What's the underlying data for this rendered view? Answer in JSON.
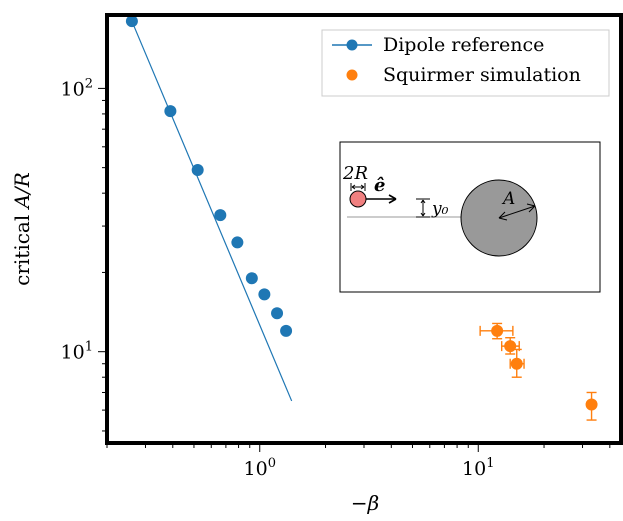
{
  "chart_data": {
    "type": "scatter",
    "xscale": "log",
    "yscale": "log",
    "xlim": [
      0.2,
      45
    ],
    "ylim": [
      4.5,
      190
    ],
    "xlabel_prefix": "−",
    "xlabel_symbol": "β",
    "ylabel_text": "critical ",
    "ylabel_math": "A/R",
    "xticks": [
      {
        "value": 1,
        "base": "10",
        "exp": "0"
      },
      {
        "value": 10,
        "base": "10",
        "exp": "1"
      }
    ],
    "yticks": [
      {
        "value": 10,
        "base": "10",
        "exp": "1"
      },
      {
        "value": 100,
        "base": "10",
        "exp": "2"
      }
    ],
    "legend": {
      "placement": "top-right",
      "entries": [
        "Dipole reference",
        "Squirmer simulation"
      ]
    },
    "series": [
      {
        "name": "Dipole reference",
        "color": "#1f77b4",
        "kind": "points+line",
        "points": [
          {
            "x": 0.26,
            "y": 180
          },
          {
            "x": 0.39,
            "y": 82
          },
          {
            "x": 0.52,
            "y": 49
          },
          {
            "x": 0.66,
            "y": 33
          },
          {
            "x": 0.79,
            "y": 26
          },
          {
            "x": 0.92,
            "y": 19
          },
          {
            "x": 1.05,
            "y": 16.5
          },
          {
            "x": 1.2,
            "y": 14
          },
          {
            "x": 1.32,
            "y": 12
          }
        ],
        "line": [
          {
            "x": 0.26,
            "y": 180
          },
          {
            "x": 1.4,
            "y": 6.5
          }
        ]
      },
      {
        "name": "Squirmer simulation",
        "color": "#ff7f0e",
        "kind": "points+errorbars",
        "points": [
          {
            "x": 12.2,
            "y": 12.0,
            "xerr": [
              10.2,
              14.4
            ],
            "yerr": [
              11.2,
              12.8
            ]
          },
          {
            "x": 14.0,
            "y": 10.5,
            "xerr": [
              12.8,
              15.4
            ],
            "yerr": [
              9.8,
              11.3
            ]
          },
          {
            "x": 15.0,
            "y": 9.0,
            "xerr": [
              14.0,
              16.2
            ],
            "yerr": [
              8.0,
              10.2
            ]
          },
          {
            "x": 33.0,
            "y": 6.3,
            "xerr": [
              32.0,
              34.0
            ],
            "yerr": [
              5.5,
              7.0
            ]
          }
        ]
      }
    ],
    "inset": {
      "label_2R": "2R",
      "label_e": "ê",
      "label_y0": "y₀",
      "label_A": "A"
    }
  }
}
